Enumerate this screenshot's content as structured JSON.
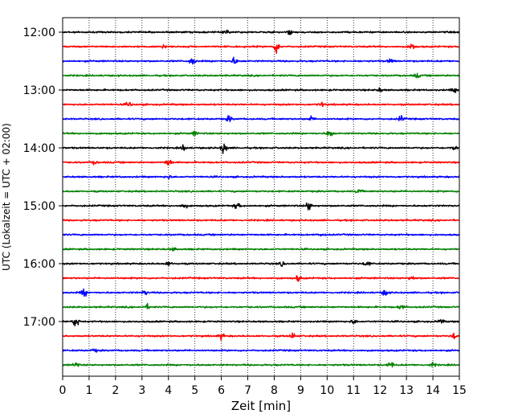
{
  "chart_data": {
    "type": "line",
    "title": "",
    "xlabel": "Zeit  [min]",
    "ylabel": "UTC (Lokalzeit = UTC + 02:00)",
    "xlim": [
      0,
      15
    ],
    "x_ticks": [
      "0",
      "1",
      "2",
      "3",
      "4",
      "5",
      "6",
      "7",
      "8",
      "9",
      "10",
      "11",
      "12",
      "13",
      "14",
      "15"
    ],
    "y_tick_labels": [
      "12:00",
      "13:00",
      "14:00",
      "15:00",
      "16:00",
      "17:00"
    ],
    "grid": "vertical dotted",
    "trace_interval_minutes": 15,
    "trace_colors": [
      "#000000",
      "#ff0000",
      "#0000ff",
      "#008000"
    ],
    "traces": [
      {
        "start": "12:00",
        "color": "#000000",
        "events": [
          {
            "t": 6.2,
            "amp": 0.3
          },
          {
            "t": 8.6,
            "amp": 0.3
          }
        ]
      },
      {
        "start": "12:15",
        "color": "#ff0000",
        "events": [
          {
            "t": 8.1,
            "amp": 0.9
          },
          {
            "t": 13.2,
            "amp": 0.5
          },
          {
            "t": 3.8,
            "amp": 0.3
          }
        ]
      },
      {
        "start": "12:30",
        "color": "#0000ff",
        "events": [
          {
            "t": 4.9,
            "amp": 0.6
          },
          {
            "t": 6.5,
            "amp": 0.5
          },
          {
            "t": 12.4,
            "amp": 0.3
          }
        ]
      },
      {
        "start": "12:45",
        "color": "#008000",
        "events": [
          {
            "t": 13.4,
            "amp": 0.3
          }
        ]
      },
      {
        "start": "13:00",
        "color": "#000000",
        "events": [
          {
            "t": 14.8,
            "amp": 0.3
          },
          {
            "t": 12.0,
            "amp": 0.25
          }
        ]
      },
      {
        "start": "13:15",
        "color": "#ff0000",
        "events": [
          {
            "t": 2.5,
            "amp": 0.3
          },
          {
            "t": 9.8,
            "amp": 0.3
          }
        ]
      },
      {
        "start": "13:30",
        "color": "#0000ff",
        "events": [
          {
            "t": 6.3,
            "amp": 0.4
          },
          {
            "t": 9.4,
            "amp": 0.3
          },
          {
            "t": 12.8,
            "amp": 0.4
          }
        ]
      },
      {
        "start": "13:45",
        "color": "#008000",
        "events": [
          {
            "t": 10.1,
            "amp": 0.6
          },
          {
            "t": 5.0,
            "amp": 0.3
          }
        ]
      },
      {
        "start": "14:00",
        "color": "#000000",
        "events": [
          {
            "t": 6.1,
            "amp": 0.8
          },
          {
            "t": 4.6,
            "amp": 0.4
          },
          {
            "t": 14.8,
            "amp": 0.3
          }
        ]
      },
      {
        "start": "14:15",
        "color": "#ff0000",
        "events": [
          {
            "t": 4.0,
            "amp": 0.6
          },
          {
            "t": 1.2,
            "amp": 0.2
          }
        ]
      },
      {
        "start": "14:30",
        "color": "#0000ff",
        "events": [
          {
            "t": 4.0,
            "amp": 0.25
          }
        ]
      },
      {
        "start": "14:45",
        "color": "#008000",
        "events": [
          {
            "t": 11.2,
            "amp": 0.3
          }
        ]
      },
      {
        "start": "15:00",
        "color": "#000000",
        "events": [
          {
            "t": 9.3,
            "amp": 0.7
          },
          {
            "t": 6.6,
            "amp": 0.5
          },
          {
            "t": 4.6,
            "amp": 0.4
          }
        ]
      },
      {
        "start": "15:15",
        "color": "#ff0000",
        "events": []
      },
      {
        "start": "15:30",
        "color": "#0000ff",
        "events": [
          {
            "t": 9.8,
            "amp": 0.2
          }
        ]
      },
      {
        "start": "15:45",
        "color": "#008000",
        "events": [
          {
            "t": 4.2,
            "amp": 0.2
          }
        ]
      },
      {
        "start": "16:00",
        "color": "#000000",
        "events": [
          {
            "t": 11.5,
            "amp": 0.4
          },
          {
            "t": 8.3,
            "amp": 0.3
          },
          {
            "t": 4.0,
            "amp": 0.3
          }
        ]
      },
      {
        "start": "16:15",
        "color": "#ff0000",
        "events": [
          {
            "t": 8.9,
            "amp": 0.4
          },
          {
            "t": 13.2,
            "amp": 0.3
          }
        ]
      },
      {
        "start": "16:30",
        "color": "#0000ff",
        "events": [
          {
            "t": 0.8,
            "amp": 0.6
          },
          {
            "t": 12.2,
            "amp": 0.5
          },
          {
            "t": 3.1,
            "amp": 0.3
          }
        ]
      },
      {
        "start": "16:45",
        "color": "#008000",
        "events": [
          {
            "t": 12.8,
            "amp": 0.4
          },
          {
            "t": 3.2,
            "amp": 0.3
          }
        ]
      },
      {
        "start": "17:00",
        "color": "#000000",
        "events": [
          {
            "t": 0.5,
            "amp": 0.8
          },
          {
            "t": 14.3,
            "amp": 0.3
          },
          {
            "t": 11.0,
            "amp": 0.3
          }
        ]
      },
      {
        "start": "17:15",
        "color": "#ff0000",
        "events": [
          {
            "t": 6.0,
            "amp": 0.4
          },
          {
            "t": 8.7,
            "amp": 0.4
          },
          {
            "t": 14.8,
            "amp": 0.4
          }
        ]
      },
      {
        "start": "17:30",
        "color": "#0000ff",
        "events": [
          {
            "t": 1.2,
            "amp": 0.2
          }
        ]
      },
      {
        "start": "17:45",
        "color": "#008000",
        "events": [
          {
            "t": 0.5,
            "amp": 0.4
          },
          {
            "t": 12.4,
            "amp": 0.5
          },
          {
            "t": 14.0,
            "amp": 0.3
          }
        ]
      }
    ]
  }
}
